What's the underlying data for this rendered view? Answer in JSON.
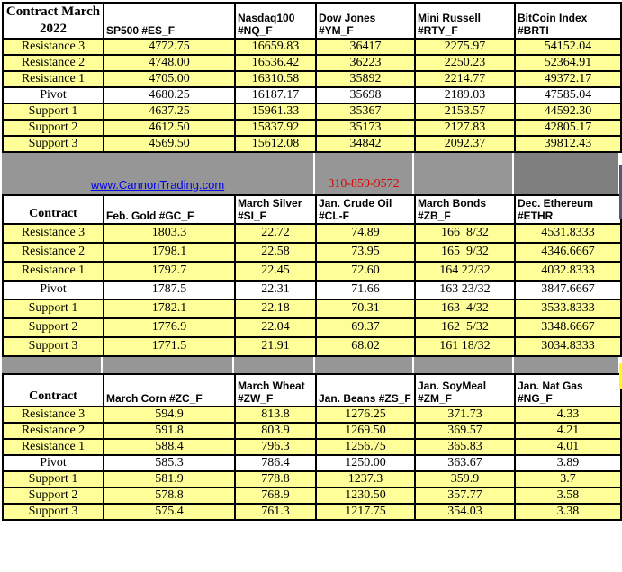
{
  "banner": {
    "link_text": "www.CannonTrading.com",
    "phone": "310-859-9572"
  },
  "colors": {
    "cell-yellow": "#ffff99",
    "band-gray": "#969696",
    "band-gray-dark": "#7f7f7f",
    "link-blue": "#0000ee",
    "phone-red": "#e00000",
    "border-black": "#000000",
    "edge-purple": "#55557d",
    "edge-yellow": "#ffff00"
  },
  "top_table": {
    "corner_label": "Contract March 2022",
    "columns": [
      "SP500 #ES_F",
      "Nasdaq100 #NQ_F",
      "Dow Jones #YM_F",
      "Mini Russell #RTY_F",
      "BitCoin Index #BRTI"
    ],
    "rows": [
      {
        "label": "Resistance 3",
        "values": [
          "4772.75",
          "16659.83",
          "36417",
          "2275.97",
          "54152.04"
        ]
      },
      {
        "label": "Resistance 2",
        "values": [
          "4748.00",
          "16536.42",
          "36223",
          "2250.23",
          "52364.91"
        ]
      },
      {
        "label": "Resistance 1",
        "values": [
          "4705.00",
          "16310.58",
          "35892",
          "2214.77",
          "49372.17"
        ]
      },
      {
        "label": "Pivot",
        "values": [
          "4680.25",
          "16187.17",
          "35698",
          "2189.03",
          "47585.04"
        ]
      },
      {
        "label": "Support 1",
        "values": [
          "4637.25",
          "15961.33",
          "35367",
          "2153.57",
          "44592.30"
        ]
      },
      {
        "label": "Support 2",
        "values": [
          "4612.50",
          "15837.92",
          "35173",
          "2127.83",
          "42805.17"
        ]
      },
      {
        "label": "Support 3",
        "values": [
          "4569.50",
          "15612.08",
          "34842",
          "2092.37",
          "39812.43"
        ]
      }
    ]
  },
  "middle_table": {
    "corner_label": "Contract",
    "columns": [
      "Feb. Gold #GC_F",
      "March Silver #SI_F",
      "Jan. Crude Oil #CL-F",
      "March Bonds #ZB_F",
      "Dec.  Ethereum #ETHR"
    ],
    "rows": [
      {
        "label": "Resistance 3",
        "values": [
          "1803.3",
          "22.72",
          "74.89",
          "166  8/32",
          "4531.8333"
        ]
      },
      {
        "label": "Resistance 2",
        "values": [
          "1798.1",
          "22.58",
          "73.95",
          "165  9/32",
          "4346.6667"
        ]
      },
      {
        "label": "Resistance 1",
        "values": [
          "1792.7",
          "22.45",
          "72.60",
          "164 22/32",
          "4032.8333"
        ]
      },
      {
        "label": "Pivot",
        "values": [
          "1787.5",
          "22.31",
          "71.66",
          "163 23/32",
          "3847.6667"
        ]
      },
      {
        "label": "Support 1",
        "values": [
          "1782.1",
          "22.18",
          "70.31",
          "163  4/32",
          "3533.8333"
        ]
      },
      {
        "label": "Support 2",
        "values": [
          "1776.9",
          "22.04",
          "69.37",
          "162  5/32",
          "3348.6667"
        ]
      },
      {
        "label": "Support 3",
        "values": [
          "1771.5",
          "21.91",
          "68.02",
          "161 18/32",
          "3034.8333"
        ]
      }
    ]
  },
  "bottom_table": {
    "corner_label": "Contract",
    "columns": [
      "March Corn #ZC_F",
      "March  Wheat #ZW_F",
      "Jan. Beans #ZS_F",
      "Jan. SoyMeal #ZM_F",
      "Jan. Nat Gas #NG_F"
    ],
    "rows": [
      {
        "label": "Resistance 3",
        "values": [
          "594.9",
          "813.8",
          "1276.25",
          "371.73",
          "4.33"
        ]
      },
      {
        "label": "Resistance 2",
        "values": [
          "591.8",
          "803.9",
          "1269.50",
          "369.57",
          "4.21"
        ]
      },
      {
        "label": "Resistance 1",
        "values": [
          "588.4",
          "796.3",
          "1256.75",
          "365.83",
          "4.01"
        ]
      },
      {
        "label": "Pivot",
        "values": [
          "585.3",
          "786.4",
          "1250.00",
          "363.67",
          "3.89"
        ]
      },
      {
        "label": "Support 1",
        "values": [
          "581.9",
          "778.8",
          "1237.3",
          "359.9",
          "3.7"
        ]
      },
      {
        "label": "Support 2",
        "values": [
          "578.8",
          "768.9",
          "1230.50",
          "357.77",
          "3.58"
        ]
      },
      {
        "label": "Support 3",
        "values": [
          "575.4",
          "761.3",
          "1217.75",
          "354.03",
          "3.38"
        ]
      }
    ]
  }
}
